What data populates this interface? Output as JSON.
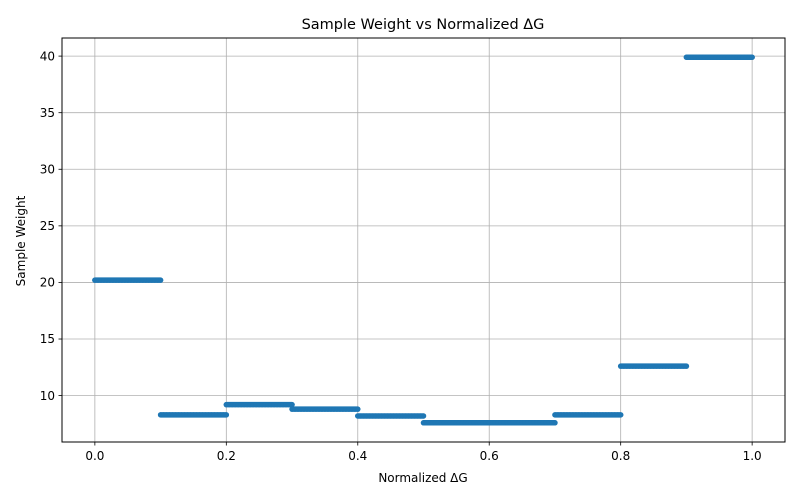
{
  "chart_data": {
    "type": "scatter",
    "title": "Sample Weight vs Normalized ΔG",
    "xlabel": "Normalized ΔG",
    "ylabel": "Sample Weight",
    "xlim": [
      -0.05,
      1.05
    ],
    "ylim": [
      5.9,
      41.6
    ],
    "grid": true,
    "marker_color": "#1f77b4",
    "x_ticks": [
      0.0,
      0.2,
      0.4,
      0.6,
      0.8,
      1.0
    ],
    "x_tick_labels": [
      "0.0",
      "0.2",
      "0.4",
      "0.6",
      "0.8",
      "1.0"
    ],
    "y_ticks": [
      10,
      15,
      20,
      25,
      30,
      35,
      40
    ],
    "y_tick_labels": [
      "10",
      "15",
      "20",
      "25",
      "30",
      "35",
      "40"
    ],
    "segments": [
      {
        "x_start": 0.0,
        "x_end": 0.1,
        "y": 20.2
      },
      {
        "x_start": 0.1,
        "x_end": 0.2,
        "y": 8.3
      },
      {
        "x_start": 0.2,
        "x_end": 0.3,
        "y": 9.2
      },
      {
        "x_start": 0.3,
        "x_end": 0.4,
        "y": 8.8
      },
      {
        "x_start": 0.4,
        "x_end": 0.5,
        "y": 8.2
      },
      {
        "x_start": 0.5,
        "x_end": 0.7,
        "y": 7.6
      },
      {
        "x_start": 0.7,
        "x_end": 0.8,
        "y": 8.3
      },
      {
        "x_start": 0.8,
        "x_end": 0.9,
        "y": 12.6
      },
      {
        "x_start": 0.9,
        "x_end": 1.0,
        "y": 39.9
      }
    ]
  }
}
